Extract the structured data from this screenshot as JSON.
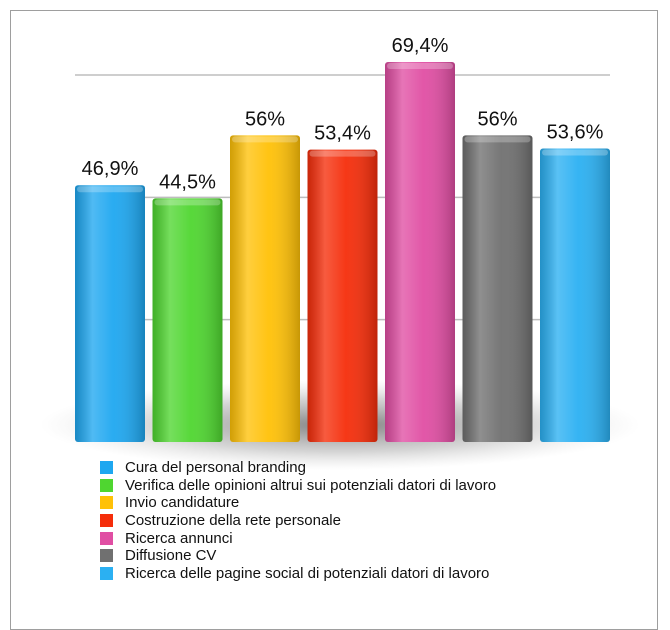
{
  "chart_data": {
    "type": "bar",
    "title": "",
    "xlabel": "",
    "ylabel": "",
    "ylim": [
      0,
      80
    ],
    "grid": true,
    "legend_position": "bottom",
    "categories": [
      "Cura del personal branding",
      "Verifica delle opinioni altrui sui potenziali datori di lavoro",
      "Invio candidature",
      "Costruzione della rete personale",
      "Ricerca annunci",
      "Diffusione CV",
      "Ricerca delle pagine social di potenziali datori di lavoro"
    ],
    "values": [
      46.9,
      44.5,
      56,
      53.4,
      69.4,
      56,
      53.6
    ],
    "value_labels": [
      "46,9%",
      "44,5%",
      "56%",
      "53,4%",
      "69,4%",
      "56%",
      "53,6%"
    ],
    "colors": [
      "#1ea7f0",
      "#4fd630",
      "#ffc107",
      "#f52d0a",
      "#e04ea3",
      "#707070",
      "#2bb0f2"
    ]
  }
}
